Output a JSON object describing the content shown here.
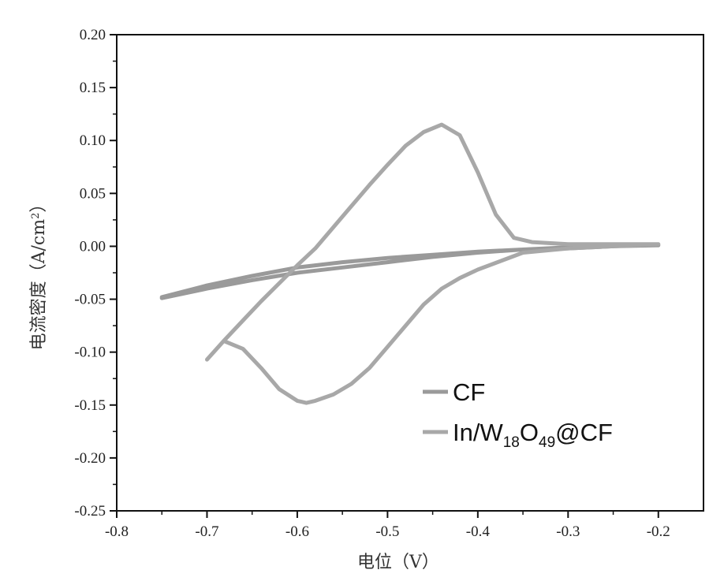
{
  "chart_data": {
    "type": "line",
    "xlabel": "电位（V）",
    "ylabel_main": "电流密度（A/cm",
    "ylabel_sup": "2",
    "ylabel_close": "）",
    "xlim": [
      -0.8,
      -0.15
    ],
    "ylim": [
      -0.25,
      0.2
    ],
    "xticks": [
      -0.8,
      -0.7,
      -0.6,
      -0.5,
      -0.4,
      -0.3,
      -0.2
    ],
    "xtick_labels": [
      "-0.8",
      "-0.7",
      "-0.6",
      "-0.5",
      "-0.4",
      "-0.3",
      "-0.2"
    ],
    "yticks": [
      -0.25,
      -0.2,
      -0.15,
      -0.1,
      -0.05,
      0.0,
      0.05,
      0.1,
      0.15,
      0.2
    ],
    "ytick_labels": [
      "-0.25",
      "-0.20",
      "-0.15",
      "-0.10",
      "-0.05",
      "0.00",
      "0.05",
      "0.10",
      "0.15",
      "0.20"
    ],
    "grid": false,
    "legend_position": "lower-right",
    "series": [
      {
        "name": "CF",
        "color": "#9a9a9a",
        "x": [
          -0.75,
          -0.7,
          -0.65,
          -0.6,
          -0.55,
          -0.5,
          -0.45,
          -0.4,
          -0.35,
          -0.3,
          -0.25,
          -0.2,
          -0.25,
          -0.3,
          -0.35,
          -0.4,
          -0.45,
          -0.5,
          -0.55,
          -0.6,
          -0.65,
          -0.7,
          -0.75
        ],
        "y": [
          -0.049,
          -0.04,
          -0.032,
          -0.025,
          -0.02,
          -0.015,
          -0.01,
          -0.006,
          -0.003,
          -0.002,
          0.0,
          0.001,
          0.0,
          -0.001,
          -0.003,
          -0.005,
          -0.008,
          -0.011,
          -0.015,
          -0.02,
          -0.028,
          -0.037,
          -0.048
        ]
      },
      {
        "name_parts": [
          "In/W",
          "18",
          "O",
          "49",
          "@CF"
        ],
        "color": "#a8a8a8",
        "x": [
          -0.7,
          -0.68,
          -0.66,
          -0.64,
          -0.62,
          -0.6,
          -0.58,
          -0.56,
          -0.54,
          -0.52,
          -0.5,
          -0.48,
          -0.46,
          -0.44,
          -0.42,
          -0.4,
          -0.38,
          -0.36,
          -0.34,
          -0.3,
          -0.25,
          -0.2,
          -0.25,
          -0.3,
          -0.35,
          -0.4,
          -0.42,
          -0.44,
          -0.46,
          -0.48,
          -0.5,
          -0.52,
          -0.54,
          -0.56,
          -0.58,
          -0.59,
          -0.6,
          -0.62,
          -0.64,
          -0.66,
          -0.68
        ],
        "y": [
          -0.107,
          -0.088,
          -0.07,
          -0.052,
          -0.035,
          -0.018,
          -0.002,
          0.018,
          0.038,
          0.058,
          0.077,
          0.095,
          0.108,
          0.115,
          0.105,
          0.07,
          0.03,
          0.008,
          0.004,
          0.002,
          0.002,
          0.002,
          0.0,
          -0.002,
          -0.006,
          -0.022,
          -0.03,
          -0.04,
          -0.055,
          -0.075,
          -0.095,
          -0.115,
          -0.13,
          -0.14,
          -0.146,
          -0.148,
          -0.146,
          -0.135,
          -0.115,
          -0.097,
          -0.09
        ]
      }
    ]
  }
}
